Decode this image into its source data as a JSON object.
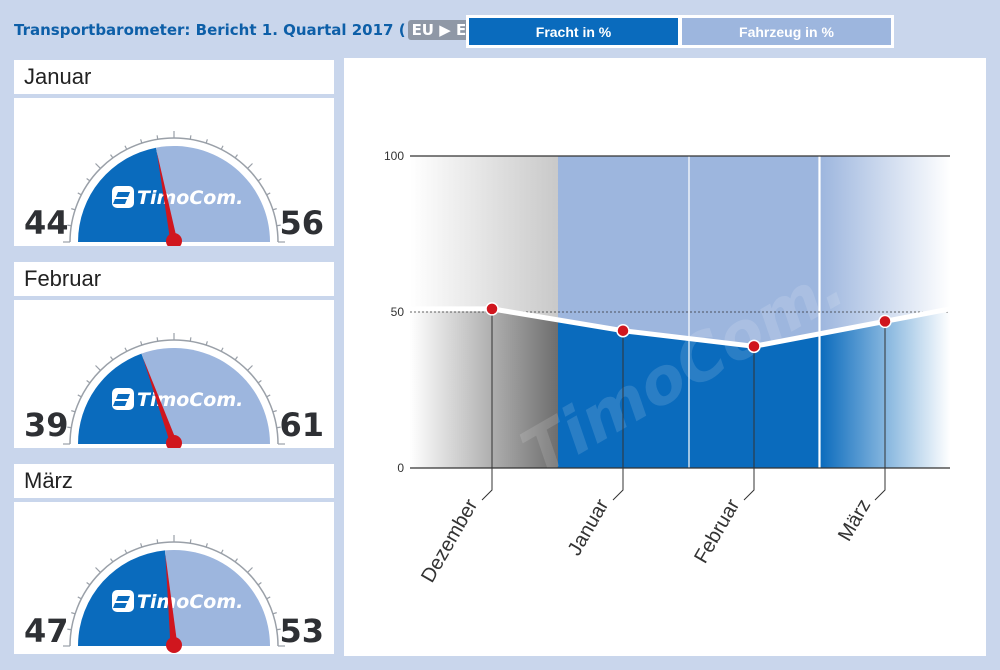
{
  "header": {
    "title": "Transportbarometer: Bericht 1. Quartal 2017",
    "route_from": "EU",
    "route_to": "EU"
  },
  "tabs": [
    {
      "label": "Fracht in %",
      "active": true
    },
    {
      "label": "Fahrzeug in %",
      "active": false
    }
  ],
  "brand": {
    "logo_text": "TimoCom."
  },
  "colors": {
    "fracht": "#0a6bbd",
    "fahrzeug": "#9db6de",
    "needle": "#d0161e",
    "page_bg": "#c9d6ec"
  },
  "gauges": [
    {
      "month": "Januar",
      "fracht": 44,
      "fahrzeug": 56
    },
    {
      "month": "Februar",
      "fracht": 39,
      "fahrzeug": 61
    },
    {
      "month": "März",
      "fracht": 47,
      "fahrzeug": 53
    }
  ],
  "chart_data": {
    "type": "line",
    "categories": [
      "Dezember",
      "Januar",
      "Februar",
      "März"
    ],
    "series": [
      {
        "values": [
          51,
          44,
          39,
          47
        ]
      }
    ],
    "yticks": [
      0,
      50,
      100
    ],
    "ylim": [
      0,
      100
    ],
    "grid": true,
    "title": "",
    "xlabel": "",
    "ylabel": ""
  }
}
